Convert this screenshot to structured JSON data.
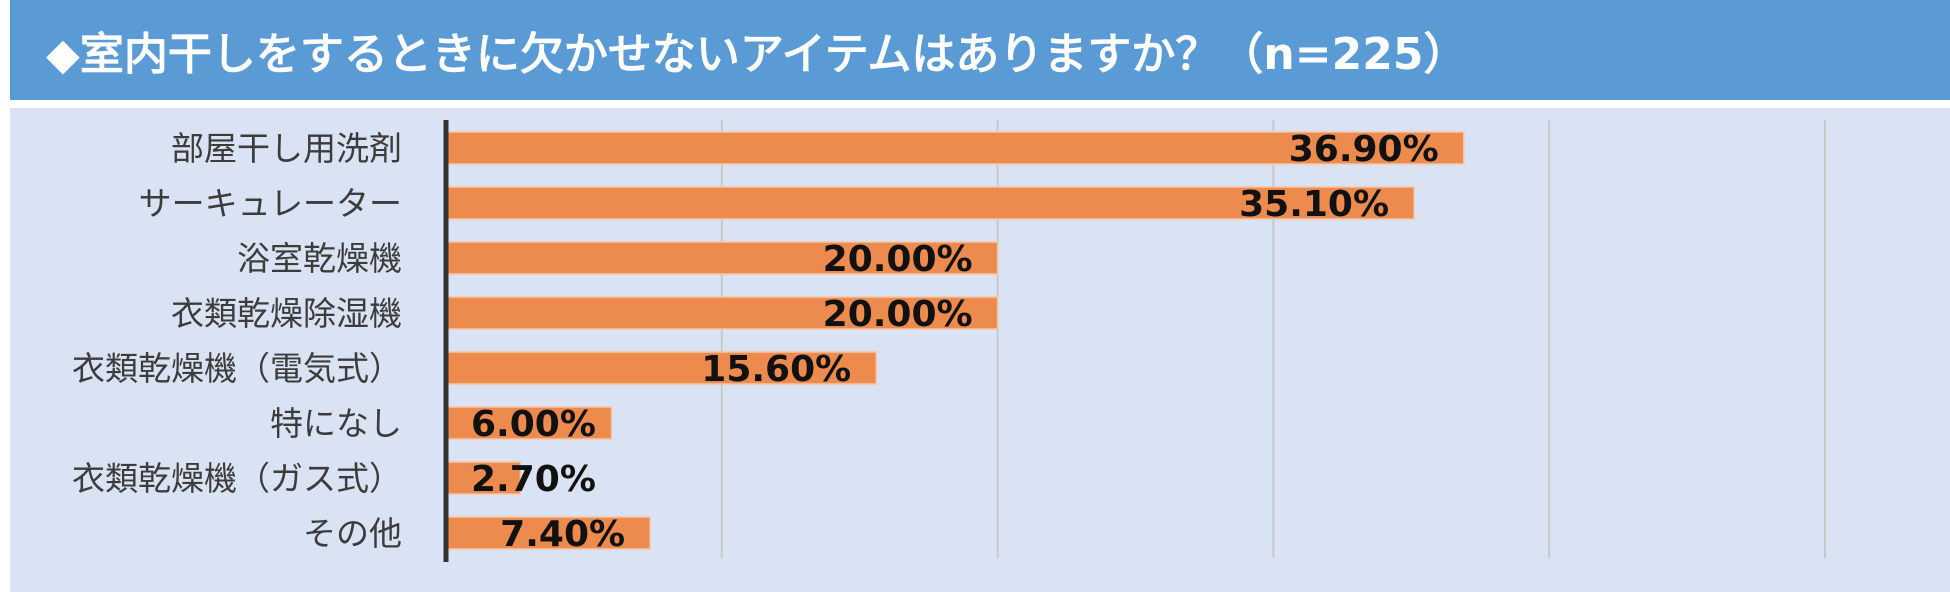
{
  "header": {
    "title": "◆室内干しをするときに欠かせないアイテムはありますか？（n=225）"
  },
  "colors": {
    "header_bg": "#5b9bd5",
    "panel_bg": "#dae3f3",
    "bar": "#ed8b4e",
    "axis": "#333333",
    "grid": "#c8c8c8"
  },
  "chart_data": {
    "type": "bar",
    "orientation": "horizontal",
    "categories": [
      "部屋干し用洗剤",
      "サーキュレーター",
      "浴室乾燥機",
      "衣類乾燥除湿機",
      "衣類乾燥機（電気式）",
      "特になし",
      "衣類乾燥機（ガス式）",
      "その他"
    ],
    "values": [
      36.9,
      35.1,
      20.0,
      20.0,
      15.6,
      6.0,
      2.7,
      7.4
    ],
    "value_labels": [
      "36.90%",
      "35.10%",
      "20.00%",
      "20.00%",
      "15.60%",
      "6.00%",
      "2.70%",
      "7.40%"
    ],
    "xlim": [
      0,
      50
    ],
    "grid": true,
    "legend": "none"
  }
}
